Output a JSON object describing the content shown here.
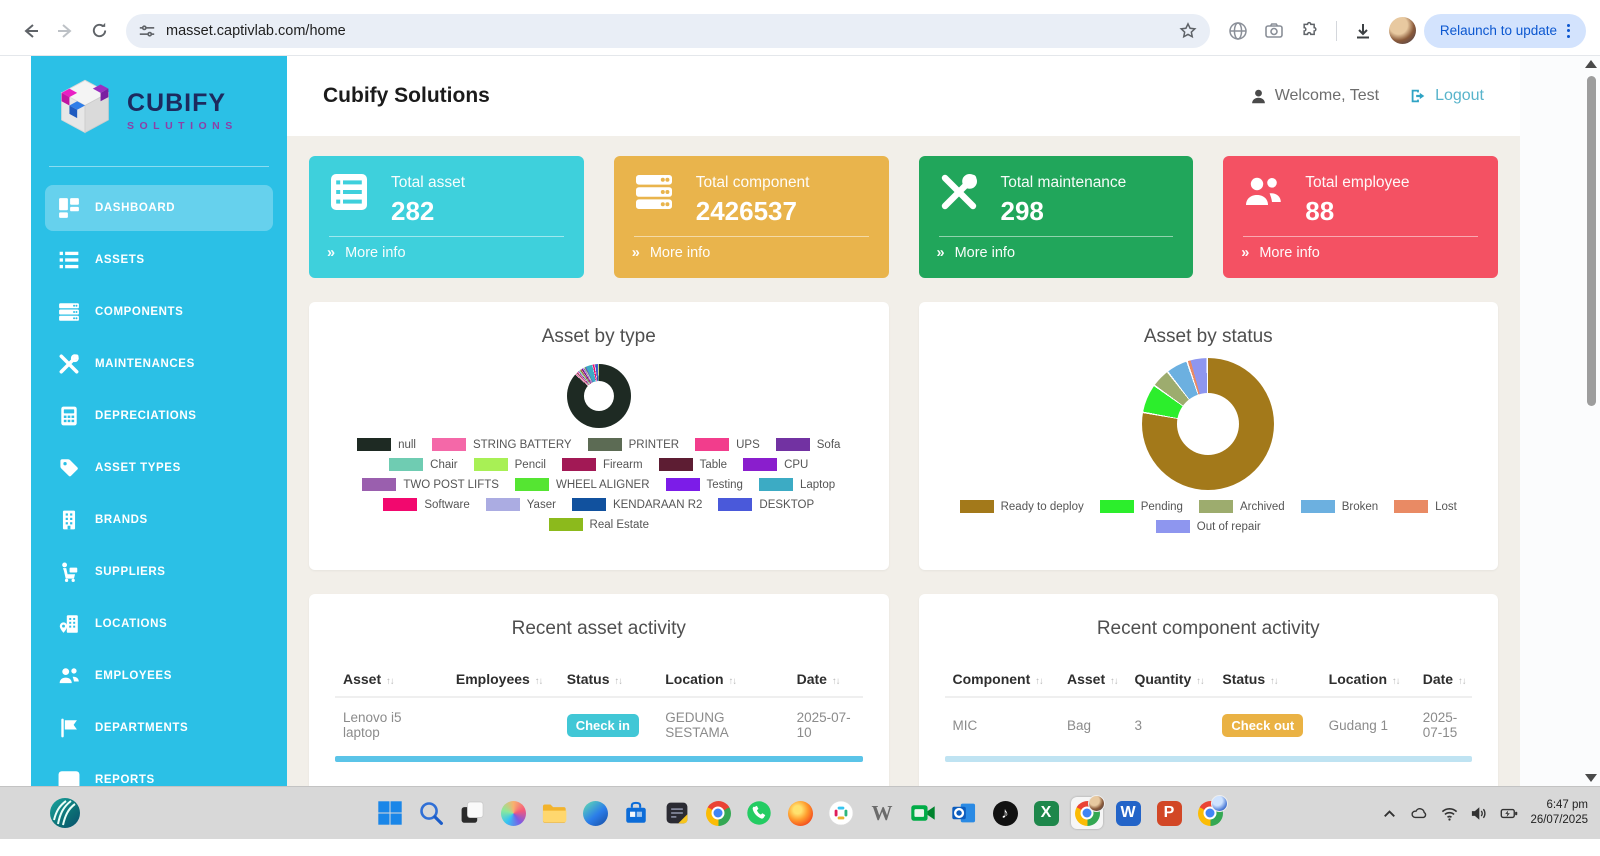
{
  "browser": {
    "url": "masset.captivlab.com/home",
    "relaunch_label": "Relaunch to update"
  },
  "brand": {
    "name": "CUBIFY",
    "subtitle": "SOLUTIONS"
  },
  "sidebar": {
    "items": [
      {
        "label": "DASHBOARD",
        "icon": "dashboard-icon",
        "active": true
      },
      {
        "label": "ASSETS",
        "icon": "assets-icon",
        "active": false
      },
      {
        "label": "COMPONENTS",
        "icon": "components-icon",
        "active": false
      },
      {
        "label": "MAINTENANCES",
        "icon": "maintenances-icon",
        "active": false
      },
      {
        "label": "DEPRECIATIONS",
        "icon": "depreciations-icon",
        "active": false
      },
      {
        "label": "ASSET TYPES",
        "icon": "asset-types-icon",
        "active": false
      },
      {
        "label": "BRANDS",
        "icon": "brands-icon",
        "active": false
      },
      {
        "label": "SUPPLIERS",
        "icon": "suppliers-icon",
        "active": false
      },
      {
        "label": "LOCATIONS",
        "icon": "locations-icon",
        "active": false
      },
      {
        "label": "EMPLOYEES",
        "icon": "employees-icon",
        "active": false
      },
      {
        "label": "DEPARTMENTS",
        "icon": "departments-icon",
        "active": false
      },
      {
        "label": "REPORTS",
        "icon": "reports-icon",
        "active": false
      }
    ]
  },
  "header": {
    "title": "Cubify Solutions",
    "welcome": "Welcome, Test",
    "logout": "Logout"
  },
  "cards": [
    {
      "label": "Total asset",
      "value": "282",
      "more": "More info",
      "color": "#3ed0dc",
      "icon": "list-icon"
    },
    {
      "label": "Total component",
      "value": "2426537",
      "more": "More info",
      "color": "#e9b44c",
      "icon": "server-icon"
    },
    {
      "label": "Total maintenance",
      "value": "298",
      "more": "More info",
      "color": "#21a65b",
      "icon": "tools-icon"
    },
    {
      "label": "Total employee",
      "value": "88",
      "more": "More info",
      "color": "#f45163",
      "icon": "people-icon"
    }
  ],
  "chart_data": [
    {
      "type": "donut",
      "title": "Asset by type",
      "categories": [
        "null",
        "STRING BATTERY",
        "PRINTER",
        "UPS",
        "Sofa",
        "Chair",
        "Pencil",
        "Firearm",
        "Table",
        "CPU",
        "TWO POST LIFTS",
        "WHEEL ALIGNER",
        "Testing",
        "Laptop",
        "Software",
        "Yaser",
        "KENDARAAN R2",
        "DESKTOP",
        "Real Estate"
      ],
      "values": [
        245,
        2,
        1,
        2,
        2,
        1,
        1,
        2,
        1,
        2,
        2,
        1,
        1,
        10,
        3,
        1,
        1,
        3,
        1
      ],
      "colors": [
        "#1e2a23",
        "#f468a8",
        "#5c6b54",
        "#f23d8c",
        "#7232a2",
        "#6fccb2",
        "#a8f055",
        "#a21955",
        "#5d1d33",
        "#8a1ecd",
        "#9a5fae",
        "#55e532",
        "#7c1ce8",
        "#3cabc4",
        "#f2086e",
        "#abace2",
        "#11519e",
        "#4a59da",
        "#8cba1c"
      ],
      "legend_position": "bottom",
      "donut_size": 64
    },
    {
      "type": "donut",
      "title": "Asset by status",
      "categories": [
        "Ready to deploy",
        "Pending",
        "Archived",
        "Broken",
        "Lost",
        "Out of repair"
      ],
      "values": [
        220,
        20,
        13,
        15,
        2,
        12
      ],
      "colors": [
        "#a3791a",
        "#2cee2c",
        "#9dac6e",
        "#6cb0e0",
        "#e98a64",
        "#8e96ef"
      ],
      "legend_position": "bottom",
      "donut_size": 132
    }
  ],
  "tables": [
    {
      "title": "Recent asset activity",
      "columns": [
        "Asset",
        "Employees",
        "Status",
        "Location",
        "Date"
      ],
      "rows": [
        [
          {
            "text": "Lenovo i5 laptop"
          },
          {
            "text": ""
          },
          {
            "badge": "Check in",
            "color": "#41c7d6"
          },
          {
            "text": "GEDUNG SESTAMA"
          },
          {
            "text": "2025-07-10"
          }
        ]
      ]
    },
    {
      "title": "Recent component activity",
      "columns": [
        "Component",
        "Asset",
        "Quantity",
        "Status",
        "Location",
        "Date"
      ],
      "rows": [
        [
          {
            "text": "MIC"
          },
          {
            "text": "Bag"
          },
          {
            "text": "3"
          },
          {
            "badge": "Check out",
            "color": "#eab244"
          },
          {
            "text": "Gudang 1"
          },
          {
            "text": "2025-07-15"
          }
        ]
      ]
    }
  ],
  "taskbar": {
    "time": "6:47 pm",
    "date": "26/07/2025",
    "apps": [
      "start",
      "search",
      "taskview",
      "copilot",
      "explorer",
      "edge",
      "store",
      "notepad",
      "chrome",
      "whatsapp",
      "firefox",
      "slack",
      "w-letter",
      "meet",
      "outlook",
      "tiktok",
      "excel",
      "chrome-profile",
      "word",
      "powerpoint",
      "chrome-alt"
    ]
  }
}
